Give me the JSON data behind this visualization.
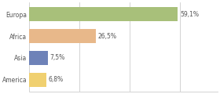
{
  "categories": [
    "Europa",
    "Africa",
    "Asia",
    "America"
  ],
  "values": [
    59.1,
    26.5,
    7.5,
    6.8
  ],
  "labels": [
    "59,1%",
    "26,5%",
    "7,5%",
    "6,8%"
  ],
  "bar_colors": [
    "#a8c07a",
    "#e8b88a",
    "#6e82b8",
    "#f0d070"
  ],
  "xlim": [
    0,
    75
  ],
  "background_color": "#ffffff",
  "bar_height": 0.65,
  "grid_color": "#cccccc",
  "text_color": "#555555",
  "label_fontsize": 5.5,
  "tick_fontsize": 5.5
}
